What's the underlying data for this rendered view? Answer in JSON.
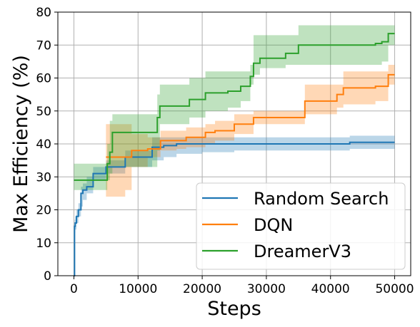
{
  "chart_data": {
    "type": "line",
    "xlabel": "Steps",
    "ylabel": "Max Efficiency (%)",
    "xlim": [
      -2500,
      52500
    ],
    "ylim": [
      0,
      80
    ],
    "xticks": [
      0,
      10000,
      20000,
      30000,
      40000,
      50000
    ],
    "xtick_labels": [
      "0",
      "10000",
      "20000",
      "30000",
      "40000",
      "50000"
    ],
    "yticks": [
      0,
      10,
      20,
      30,
      40,
      50,
      60,
      70,
      80
    ],
    "ytick_labels": [
      "0",
      "10",
      "20",
      "30",
      "40",
      "50",
      "60",
      "70",
      "80"
    ],
    "grid": true,
    "legend_position": "lower-right",
    "series": [
      {
        "name": "Random Search",
        "color": "#1f77b4",
        "step": true,
        "x": [
          0,
          100,
          200,
          400,
          700,
          1100,
          1400,
          2000,
          3000,
          5000,
          7300,
          8000,
          9000,
          11000,
          12200,
          14000,
          16000,
          20000,
          25000,
          30000,
          35000,
          40000,
          43000,
          45000,
          50000
        ],
        "y": [
          0,
          15,
          16,
          18,
          20,
          25,
          26,
          27,
          31,
          33,
          33,
          36,
          36,
          36,
          39,
          39.5,
          40,
          40,
          40,
          40,
          40,
          40,
          40.5,
          40.5,
          40.5
        ],
        "lower": [
          0,
          13,
          14,
          16,
          18,
          21,
          23,
          25,
          29,
          31,
          31,
          33,
          33,
          33,
          35,
          36,
          37,
          37.5,
          38,
          38,
          38,
          38,
          38.5,
          38.5,
          38.5
        ],
        "upper": [
          0,
          17,
          18,
          20,
          22,
          27,
          28,
          30,
          33,
          35,
          35,
          38,
          38,
          38,
          42,
          42,
          42,
          42,
          42,
          42,
          42,
          42,
          42.5,
          42.5,
          42.5
        ]
      },
      {
        "name": "DQN",
        "color": "#ff7f0e",
        "step": true,
        "x": [
          5000,
          8000,
          9000,
          11500,
          13500,
          16000,
          17500,
          20500,
          22000,
          25000,
          28000,
          29500,
          34000,
          36000,
          38000,
          41000,
          42000,
          47000,
          49000,
          50000
        ],
        "y": [
          36,
          36,
          38,
          38.5,
          41,
          41,
          42,
          43.5,
          44,
          46,
          48,
          48,
          48,
          53,
          53,
          55,
          57,
          57.5,
          61,
          61
        ],
        "lower": [
          24,
          26,
          33,
          36,
          38,
          38.5,
          39,
          40,
          41,
          43,
          46,
          46,
          46,
          49,
          49,
          51,
          52,
          53,
          58,
          58
        ],
        "upper": [
          46,
          46,
          43,
          42,
          44,
          44,
          45,
          46,
          47,
          49,
          50,
          50,
          50,
          58,
          58,
          58,
          62,
          62,
          64,
          64
        ]
      },
      {
        "name": "DreamerV3",
        "color": "#2ca02c",
        "step": true,
        "x": [
          0,
          5200,
          5600,
          6000,
          13000,
          13400,
          14000,
          18000,
          20500,
          24000,
          26000,
          27500,
          28000,
          29000,
          33000,
          35000,
          40000,
          44000,
          47000,
          48000,
          49000,
          50000
        ],
        "y": [
          29,
          34,
          37.5,
          43.5,
          48,
          51.5,
          51.5,
          53.5,
          55.5,
          56,
          57.5,
          60.5,
          64.5,
          66,
          67.5,
          70,
          70,
          70,
          70.5,
          71,
          73.5,
          73.5
        ],
        "lower": [
          26,
          29,
          31,
          33,
          38,
          46,
          46,
          48,
          50,
          51,
          53,
          58,
          61,
          63,
          64,
          64,
          64,
          64,
          64,
          65,
          70,
          70
        ],
        "upper": [
          34,
          40,
          47,
          49,
          55,
          58,
          58,
          60,
          62,
          62,
          62,
          64,
          73,
          73,
          73,
          76,
          76,
          76,
          76,
          76,
          76,
          76
        ]
      }
    ]
  }
}
